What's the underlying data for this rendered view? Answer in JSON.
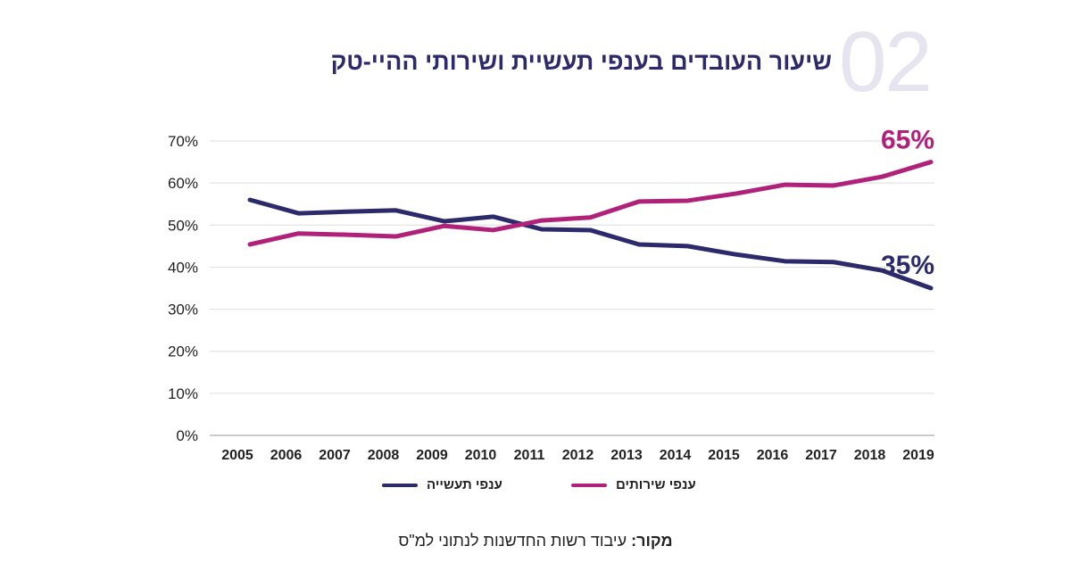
{
  "header": {
    "number": "02",
    "title": "שיעור העובדים בענפי תעשיית ושירותי ההיי-טק"
  },
  "chart_data": {
    "type": "line",
    "title": "שיעור העובדים בענפי תעשיית ושירותי ההיי-טק",
    "x": [
      "2005",
      "2006",
      "2007",
      "2008",
      "2009",
      "2010",
      "2011",
      "2012",
      "2013",
      "2014",
      "2015",
      "2016",
      "2017",
      "2018",
      "2019"
    ],
    "ylim": [
      0,
      70
    ],
    "yticks": [
      "0%",
      "10%",
      "20%",
      "30%",
      "40%",
      "50%",
      "60%",
      "70%"
    ],
    "grid": true,
    "legend_position": "bottom",
    "series": [
      {
        "name": "ענפי תעשייה",
        "color": "#2d2a6b",
        "values": [
          56,
          52.8,
          53.2,
          53.5,
          50.9,
          52,
          49,
          48.8,
          45.4,
          45,
          43,
          41.4,
          41.2,
          39.2,
          35
        ],
        "end_label": "35%"
      },
      {
        "name": "ענפי שירותים",
        "color": "#b0217a",
        "values": [
          45.4,
          48,
          47.7,
          47.3,
          49.8,
          48.8,
          51.1,
          51.8,
          55.6,
          55.8,
          57.5,
          59.6,
          59.4,
          61.5,
          65
        ],
        "end_label": "65%"
      }
    ]
  },
  "source": {
    "label": "מקור:",
    "text": " עיבוד רשות החדשנות לנתוני למ\"ס"
  }
}
